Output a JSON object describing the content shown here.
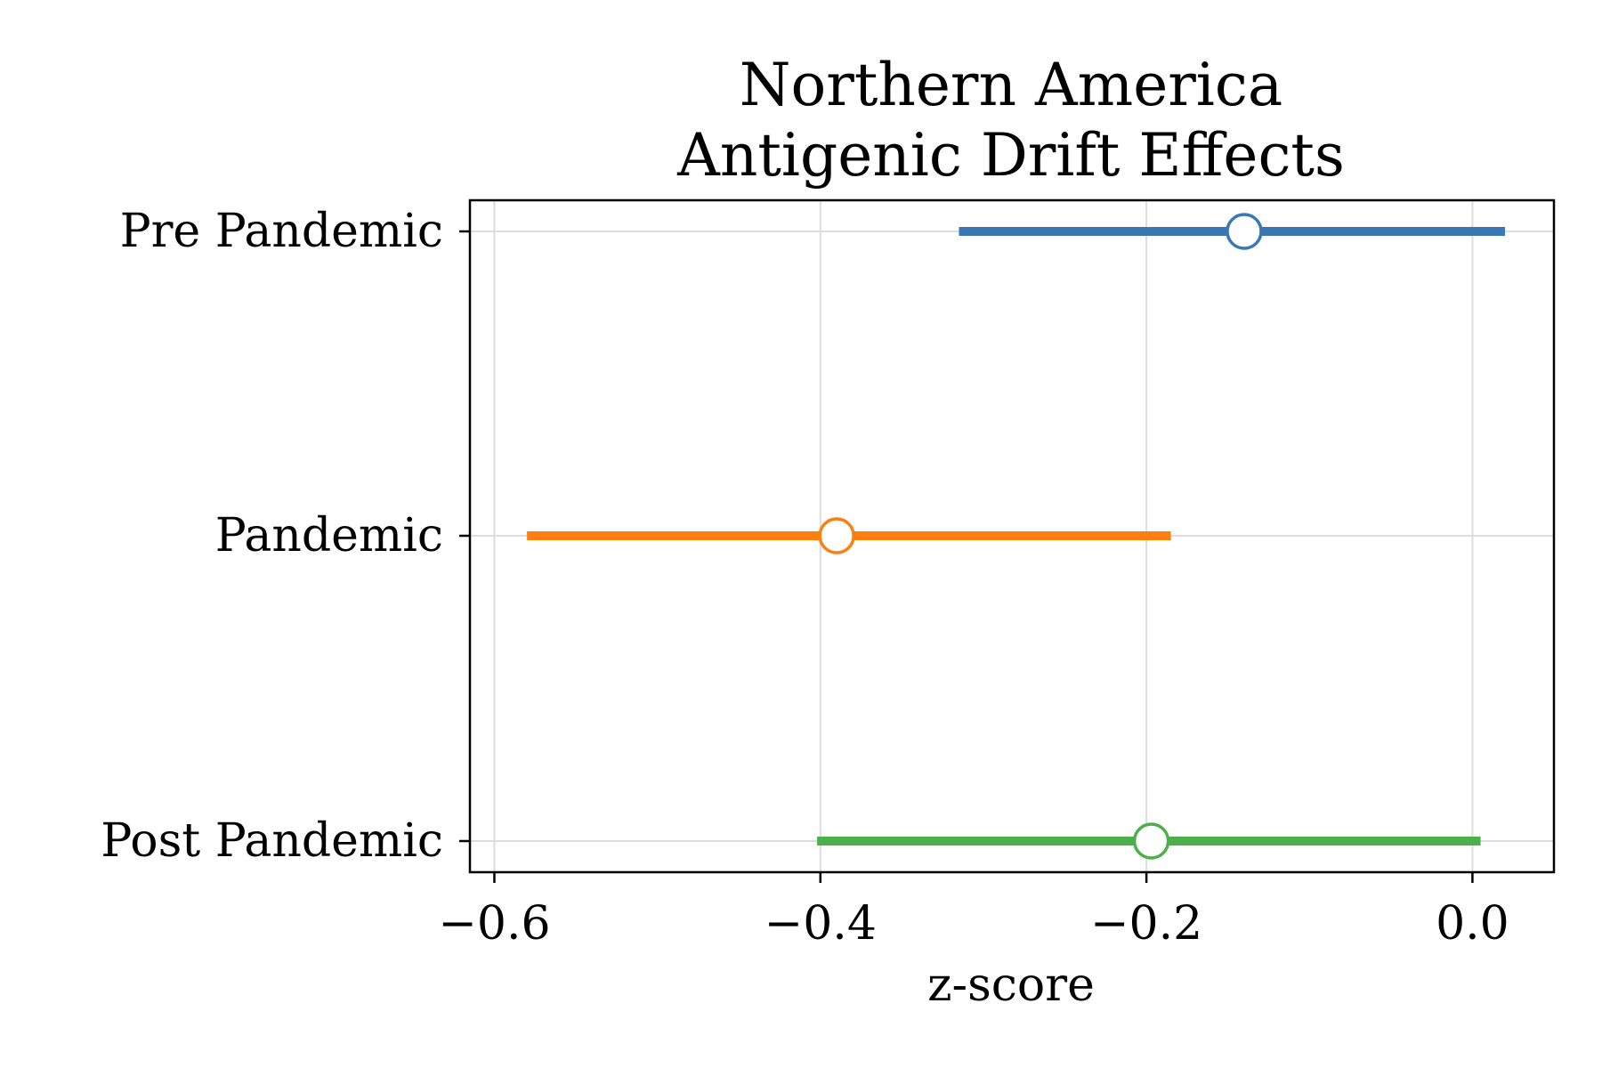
{
  "chart_data": {
    "type": "forest",
    "title_lines": [
      "Northern America",
      "Antigenic Drift Effects"
    ],
    "xlabel": "z-score",
    "ylabel": "",
    "xlim": [
      -0.615,
      0.05
    ],
    "xticks": [
      {
        "value": -0.6,
        "label": "−0.6"
      },
      {
        "value": -0.4,
        "label": "−0.4"
      },
      {
        "value": -0.2,
        "label": "−0.2"
      },
      {
        "value": 0.0,
        "label": "0.0"
      }
    ],
    "grid": true,
    "series": [
      {
        "name": "Pre Pandemic",
        "estimate": -0.14,
        "ci_low": -0.315,
        "ci_high": 0.02,
        "color": "#3a78b5"
      },
      {
        "name": "Pandemic",
        "estimate": -0.39,
        "ci_low": -0.58,
        "ci_high": -0.185,
        "color": "#ff7f0e"
      },
      {
        "name": "Post Pandemic",
        "estimate": -0.197,
        "ci_low": -0.402,
        "ci_high": 0.005,
        "color": "#4daf4a"
      }
    ]
  }
}
